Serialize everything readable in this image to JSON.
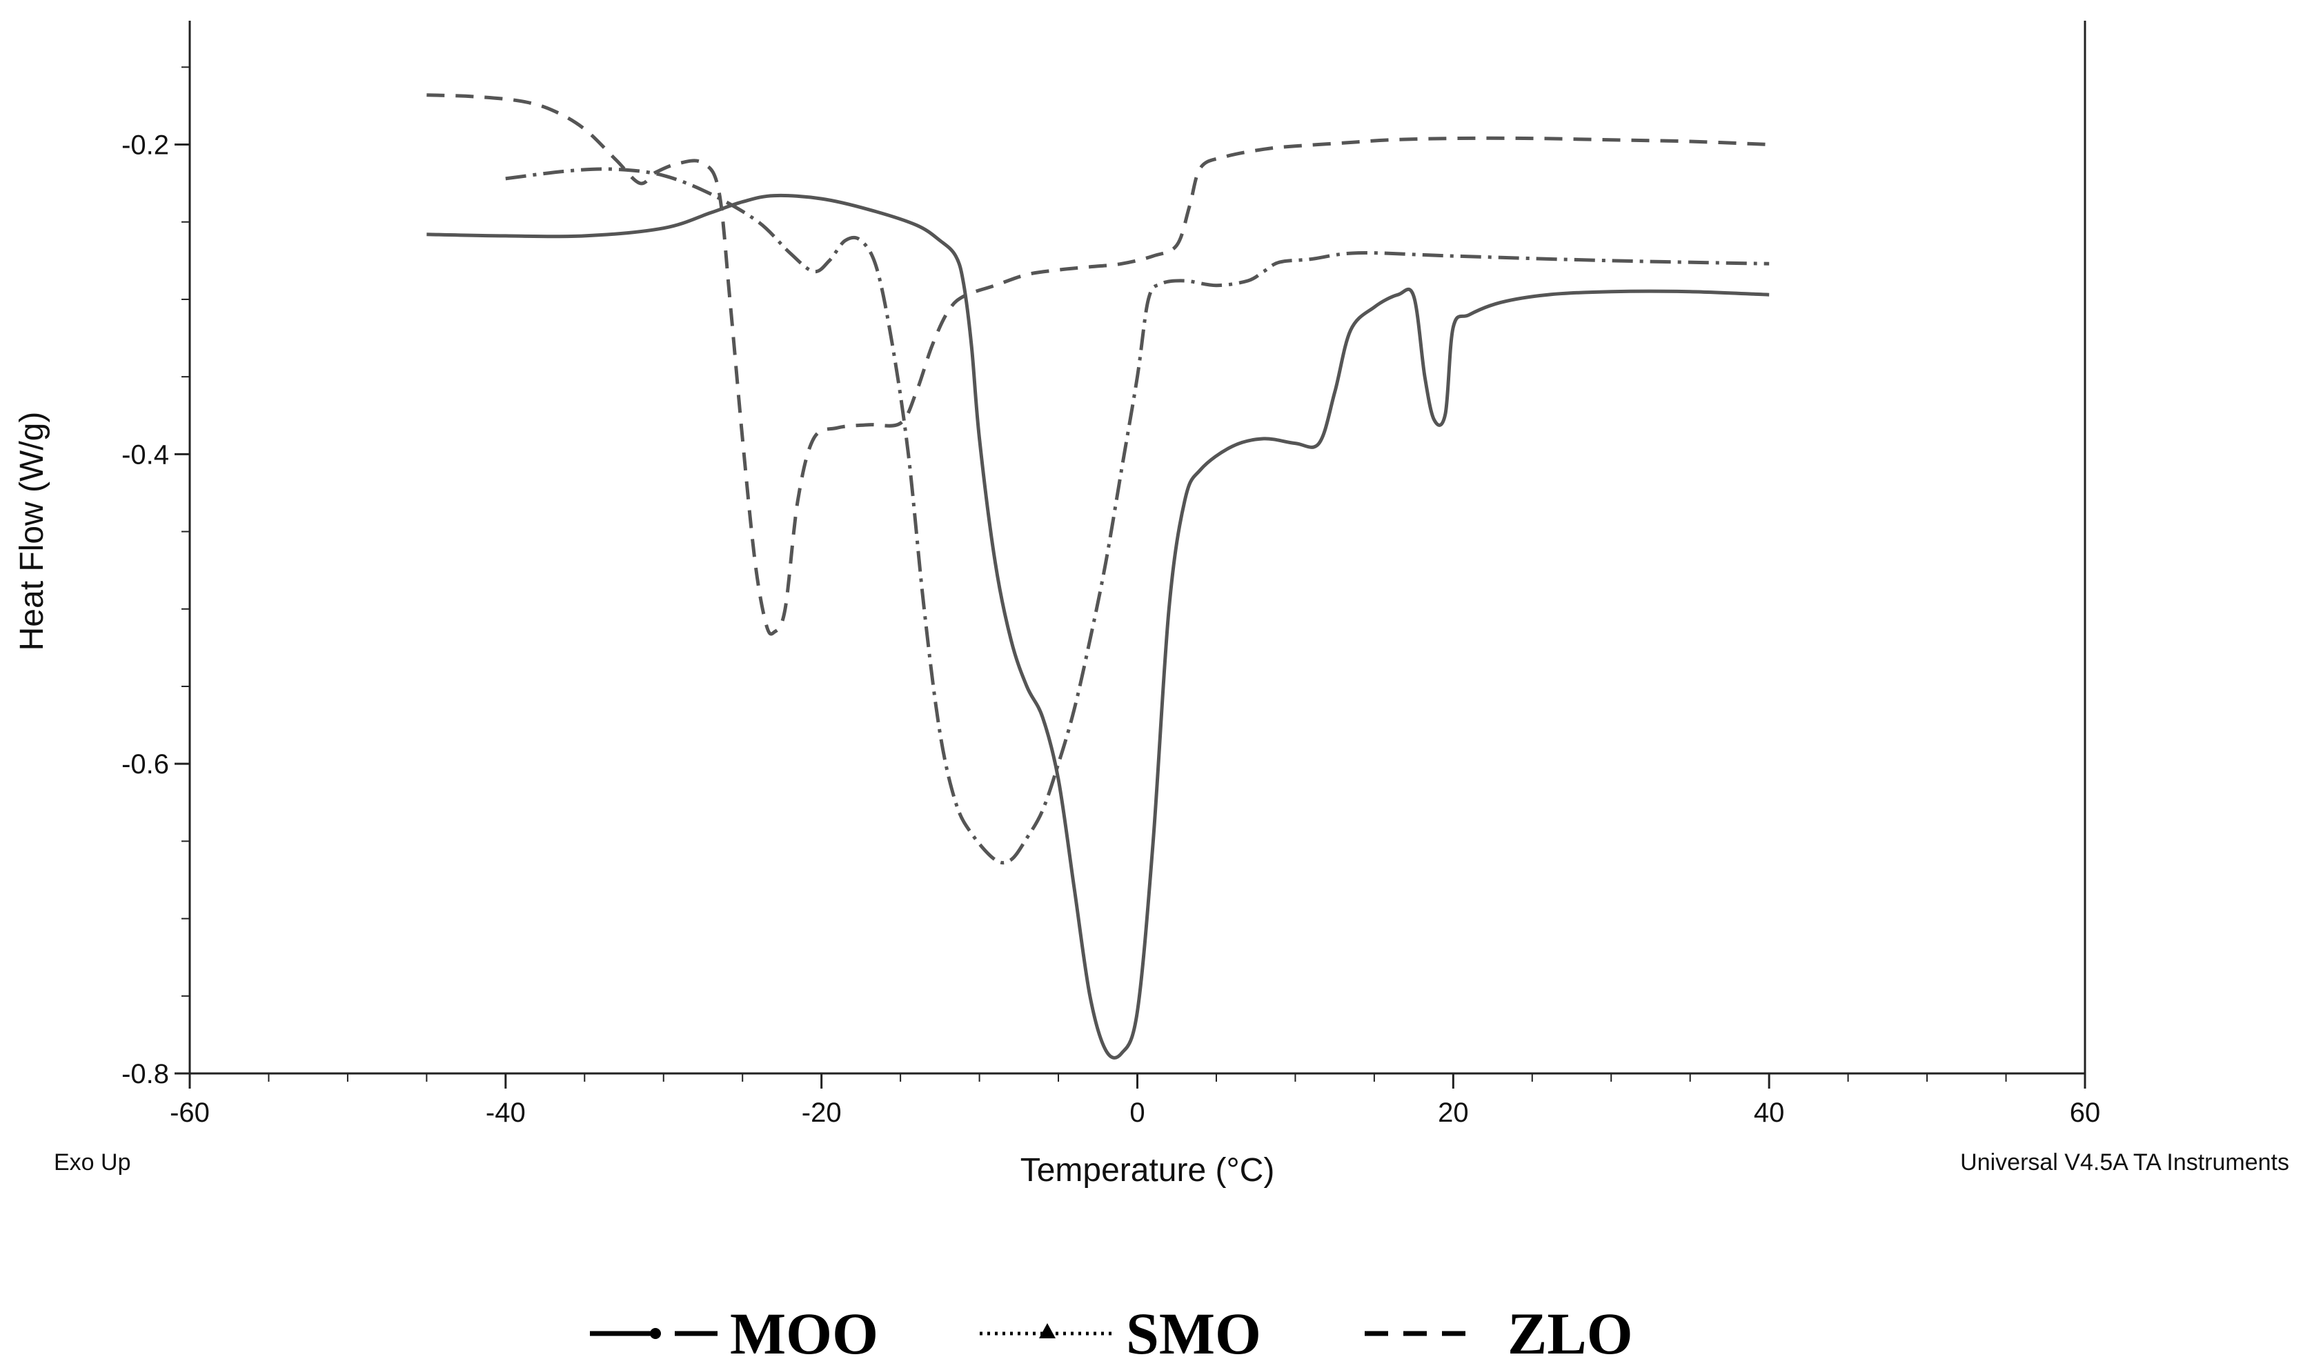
{
  "chart_data": {
    "type": "line",
    "xlabel": "Temperature (°C)",
    "ylabel": "Heat Flow (W/g)",
    "xlim": [
      -60,
      60
    ],
    "ylim": [
      -0.8,
      -0.12
    ],
    "x_ticks": [
      -60,
      -40,
      -20,
      0,
      20,
      40,
      60
    ],
    "x_tick_labels": [
      "-60",
      "-40",
      "-20",
      "0",
      "20",
      "40",
      "60"
    ],
    "y_ticks": [
      -0.2,
      -0.4,
      -0.6,
      -0.8
    ],
    "y_tick_labels": [
      "-0.2",
      "-0.4",
      "-0.6",
      "-0.8"
    ],
    "grid": false,
    "legend_position": "bottom",
    "annotations": {
      "left": "Exo Up",
      "right": "Universal V4.5A TA Instruments"
    },
    "series": [
      {
        "name": "MOO",
        "style": "solid",
        "color": "#555555",
        "points": [
          [
            -45,
            -0.258
          ],
          [
            -40,
            -0.259
          ],
          [
            -35,
            -0.259
          ],
          [
            -30,
            -0.254
          ],
          [
            -27,
            -0.244
          ],
          [
            -25,
            -0.237
          ],
          [
            -23,
            -0.233
          ],
          [
            -20,
            -0.235
          ],
          [
            -17,
            -0.242
          ],
          [
            -14,
            -0.252
          ],
          [
            -12.5,
            -0.262
          ],
          [
            -11.5,
            -0.272
          ],
          [
            -11,
            -0.29
          ],
          [
            -10.5,
            -0.33
          ],
          [
            -10,
            -0.39
          ],
          [
            -9,
            -0.47
          ],
          [
            -8,
            -0.52
          ],
          [
            -7,
            -0.55
          ],
          [
            -6,
            -0.57
          ],
          [
            -5,
            -0.61
          ],
          [
            -4,
            -0.68
          ],
          [
            -3,
            -0.75
          ],
          [
            -2,
            -0.785
          ],
          [
            -1,
            -0.787
          ],
          [
            0,
            -0.76
          ],
          [
            1,
            -0.65
          ],
          [
            2,
            -0.5
          ],
          [
            3,
            -0.43
          ],
          [
            4,
            -0.41
          ],
          [
            6,
            -0.395
          ],
          [
            8,
            -0.39
          ],
          [
            10,
            -0.393
          ],
          [
            11.5,
            -0.393
          ],
          [
            12.5,
            -0.36
          ],
          [
            13.5,
            -0.32
          ],
          [
            15,
            -0.305
          ],
          [
            16.5,
            -0.297
          ],
          [
            17.5,
            -0.298
          ],
          [
            18.2,
            -0.35
          ],
          [
            18.8,
            -0.378
          ],
          [
            19.5,
            -0.374
          ],
          [
            20,
            -0.318
          ],
          [
            21,
            -0.31
          ],
          [
            23,
            -0.302
          ],
          [
            26,
            -0.297
          ],
          [
            30,
            -0.295
          ],
          [
            35,
            -0.295
          ],
          [
            40,
            -0.297
          ]
        ]
      },
      {
        "name": "SMO",
        "style": "dash-dot",
        "color": "#555555",
        "points": [
          [
            -40,
            -0.222
          ],
          [
            -36,
            -0.217
          ],
          [
            -33,
            -0.216
          ],
          [
            -30,
            -0.22
          ],
          [
            -27,
            -0.232
          ],
          [
            -24,
            -0.25
          ],
          [
            -22,
            -0.27
          ],
          [
            -20.5,
            -0.282
          ],
          [
            -19.5,
            -0.275
          ],
          [
            -18.5,
            -0.262
          ],
          [
            -17.5,
            -0.262
          ],
          [
            -16.5,
            -0.28
          ],
          [
            -15.5,
            -0.33
          ],
          [
            -14.5,
            -0.4
          ],
          [
            -13.5,
            -0.5
          ],
          [
            -12.5,
            -0.58
          ],
          [
            -11.5,
            -0.625
          ],
          [
            -10.5,
            -0.645
          ],
          [
            -9,
            -0.662
          ],
          [
            -8,
            -0.662
          ],
          [
            -7,
            -0.648
          ],
          [
            -6,
            -0.63
          ],
          [
            -5,
            -0.6
          ],
          [
            -4,
            -0.565
          ],
          [
            -3,
            -0.52
          ],
          [
            -2,
            -0.47
          ],
          [
            -1,
            -0.41
          ],
          [
            0,
            -0.35
          ],
          [
            0.7,
            -0.3
          ],
          [
            1.5,
            -0.29
          ],
          [
            3,
            -0.288
          ],
          [
            5,
            -0.291
          ],
          [
            7,
            -0.288
          ],
          [
            8,
            -0.282
          ],
          [
            9,
            -0.276
          ],
          [
            11,
            -0.274
          ],
          [
            14,
            -0.27
          ],
          [
            20,
            -0.272
          ],
          [
            30,
            -0.275
          ],
          [
            40,
            -0.277
          ]
        ]
      },
      {
        "name": "ZLO",
        "style": "dashed",
        "color": "#555555",
        "points": [
          [
            -45,
            -0.168
          ],
          [
            -42,
            -0.169
          ],
          [
            -39,
            -0.172
          ],
          [
            -37,
            -0.178
          ],
          [
            -35,
            -0.19
          ],
          [
            -33,
            -0.21
          ],
          [
            -31.5,
            -0.225
          ],
          [
            -30.5,
            -0.218
          ],
          [
            -29,
            -0.212
          ],
          [
            -27.5,
            -0.212
          ],
          [
            -26.5,
            -0.23
          ],
          [
            -25.8,
            -0.3
          ],
          [
            -25,
            -0.39
          ],
          [
            -24.2,
            -0.47
          ],
          [
            -23.5,
            -0.51
          ],
          [
            -23,
            -0.515
          ],
          [
            -22.3,
            -0.5
          ],
          [
            -21.5,
            -0.43
          ],
          [
            -20.5,
            -0.39
          ],
          [
            -19,
            -0.383
          ],
          [
            -17,
            -0.381
          ],
          [
            -15,
            -0.38
          ],
          [
            -14,
            -0.36
          ],
          [
            -13,
            -0.33
          ],
          [
            -12,
            -0.308
          ],
          [
            -11,
            -0.298
          ],
          [
            -9,
            -0.291
          ],
          [
            -7,
            -0.284
          ],
          [
            -5,
            -0.281
          ],
          [
            -3,
            -0.279
          ],
          [
            -1,
            -0.277
          ],
          [
            1,
            -0.272
          ],
          [
            2.5,
            -0.265
          ],
          [
            3.3,
            -0.24
          ],
          [
            4,
            -0.215
          ],
          [
            5.5,
            -0.208
          ],
          [
            8,
            -0.203
          ],
          [
            10,
            -0.201
          ],
          [
            13,
            -0.199
          ],
          [
            16,
            -0.197
          ],
          [
            20,
            -0.196
          ],
          [
            25,
            -0.196
          ],
          [
            30,
            -0.197
          ],
          [
            35,
            -0.198
          ],
          [
            40,
            -0.2
          ]
        ]
      }
    ]
  }
}
